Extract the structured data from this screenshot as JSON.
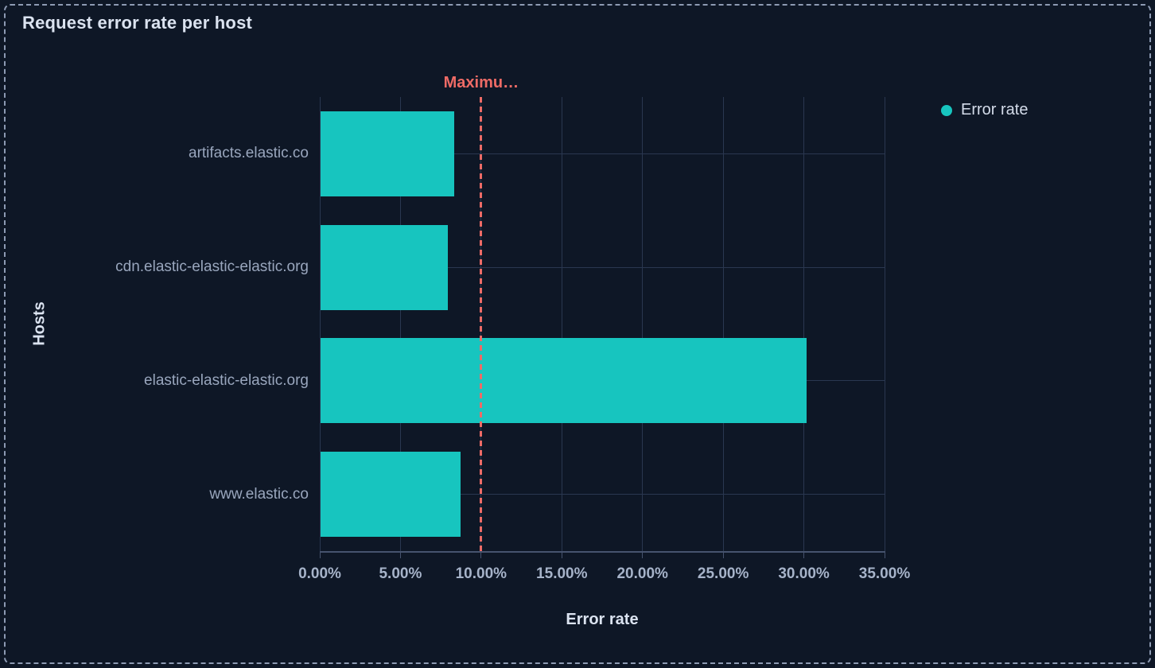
{
  "panel": {
    "title": "Request error rate per host"
  },
  "legend": {
    "position": "right-top",
    "items": [
      {
        "label": "Error rate",
        "color": "#17c5bf"
      }
    ]
  },
  "chart_data": {
    "type": "bar",
    "orientation": "horizontal",
    "title": "Request error rate per host",
    "xlabel": "Error rate",
    "ylabel": "Hosts",
    "categories": [
      "artifacts.elastic.co",
      "cdn.elastic-elastic-elastic.org",
      "elastic-elastic-elastic.org",
      "www.elastic.co"
    ],
    "series": [
      {
        "name": "Error rate",
        "color": "#17c5bf",
        "values": [
          8.3,
          7.9,
          30.1,
          8.7
        ]
      }
    ],
    "unit": "%",
    "xlim": [
      0,
      35
    ],
    "x_tick_values": [
      0,
      5,
      10,
      15,
      20,
      25,
      30,
      35
    ],
    "x_ticks": [
      "0.00%",
      "5.00%",
      "10.00%",
      "15.00%",
      "20.00%",
      "25.00%",
      "30.00%",
      "35.00%"
    ],
    "threshold": {
      "label": "Maximu…",
      "value": 10,
      "color": "#ee6b66"
    },
    "grid": true,
    "legend_position": "right-top"
  },
  "colors": {
    "background": "#0e1726",
    "bar": "#17c5bf",
    "threshold": "#ee6b66",
    "gridline": "#2a3750",
    "axis_line": "#46536e",
    "panel_border": "#8d9ab3",
    "title_text": "#dbe3f0",
    "tick_text": "#a6b3c9",
    "category_text": "#99a6bd"
  }
}
